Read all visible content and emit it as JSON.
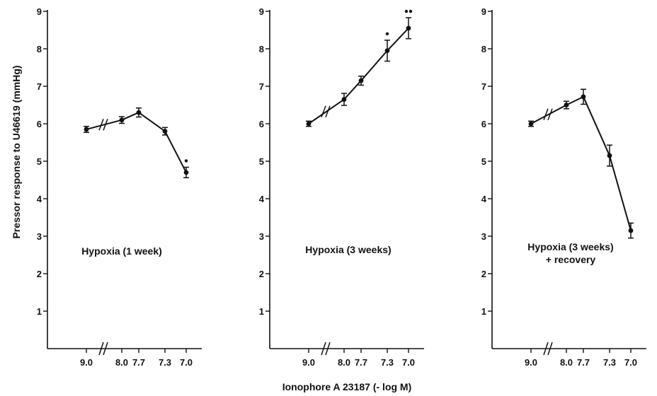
{
  "ylabel": "Pressor response to U46619 (mmHg)",
  "xlabel": "Ionophore A 23187 (- log M)",
  "chart_data": [
    {
      "type": "line",
      "annotation": [
        "Hypoxia (1 week)"
      ],
      "x_tick_labels": [
        "9.0",
        "8.0",
        "7.7",
        "7.3",
        "7.0"
      ],
      "y_ticks": [
        1,
        2,
        3,
        4,
        5,
        6,
        7,
        8,
        9
      ],
      "ylim": [
        0,
        9
      ],
      "x_axis_break_between": [
        "9.0",
        "8.0"
      ],
      "x": [
        "9.0",
        "8.0",
        "7.7",
        "7.3",
        "7.0"
      ],
      "values": [
        5.85,
        6.1,
        6.3,
        5.8,
        4.7
      ],
      "errors": [
        0.08,
        0.09,
        0.12,
        0.1,
        0.14
      ],
      "significance": [
        "",
        "",
        "",
        "",
        "*"
      ]
    },
    {
      "type": "line",
      "annotation": [
        "Hypoxia (3 weeks)"
      ],
      "x_tick_labels": [
        "9.0",
        "8.0",
        "7.7",
        "7.3",
        "7.0"
      ],
      "y_ticks": [
        1,
        2,
        3,
        4,
        5,
        6,
        7,
        8,
        9
      ],
      "ylim": [
        0,
        9
      ],
      "x_axis_break_between": [
        "9.0",
        "8.0"
      ],
      "x": [
        "9.0",
        "8.0",
        "7.7",
        "7.3",
        "7.0"
      ],
      "values": [
        6.0,
        6.65,
        7.15,
        7.95,
        8.55
      ],
      "errors": [
        0.07,
        0.16,
        0.12,
        0.28,
        0.28
      ],
      "significance": [
        "",
        "",
        "",
        "*",
        "**"
      ]
    },
    {
      "type": "line",
      "annotation": [
        "Hypoxia (3 weeks)",
        "+ recovery"
      ],
      "x_tick_labels": [
        "9.0",
        "8.0",
        "7.7",
        "7.3",
        "7.0"
      ],
      "y_ticks": [
        1,
        2,
        3,
        4,
        5,
        6,
        7,
        8,
        9
      ],
      "ylim": [
        0,
        9
      ],
      "x_axis_break_between": [
        "9.0",
        "8.0"
      ],
      "x": [
        "9.0",
        "8.0",
        "7.7",
        "7.3",
        "7.0"
      ],
      "values": [
        6.0,
        6.5,
        6.72,
        5.15,
        3.15
      ],
      "errors": [
        0.07,
        0.1,
        0.2,
        0.28,
        0.2
      ],
      "significance": [
        "",
        "",
        "",
        "",
        ""
      ]
    }
  ]
}
